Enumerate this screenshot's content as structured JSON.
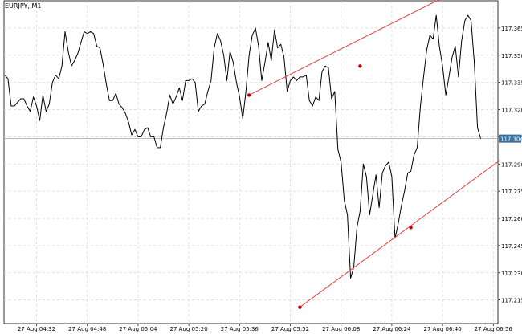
{
  "header": {
    "symbol_label": "EURJPY, M1"
  },
  "price_line": {
    "label": "117.304",
    "value": 117.304,
    "color": "#3c6e9a"
  },
  "chart_data": {
    "type": "line",
    "title": "",
    "xlabel": "",
    "ylabel": "",
    "ylim": [
      117.202,
      117.38
    ],
    "grid": true,
    "y_ticks": [
      {
        "v": 117.365,
        "label": "117.365"
      },
      {
        "v": 117.35,
        "label": "117.350"
      },
      {
        "v": 117.335,
        "label": "117.335"
      },
      {
        "v": 117.32,
        "label": "117.320"
      },
      {
        "v": 117.305,
        "label": "117.305"
      },
      {
        "v": 117.29,
        "label": "117.290"
      },
      {
        "v": 117.275,
        "label": "117.275"
      },
      {
        "v": 117.26,
        "label": "117.260"
      },
      {
        "v": 117.245,
        "label": "117.245"
      },
      {
        "v": 117.23,
        "label": "117.230"
      },
      {
        "v": 117.215,
        "label": "117.215"
      }
    ],
    "x_ticks": [
      {
        "t": 10,
        "label": "27 Aug 04:32"
      },
      {
        "t": 26,
        "label": "27 Aug 04:48"
      },
      {
        "t": 42,
        "label": "27 Aug 05:04"
      },
      {
        "t": 58,
        "label": "27 Aug 05:20"
      },
      {
        "t": 74,
        "label": "27 Aug 05:36"
      },
      {
        "t": 90,
        "label": "27 Aug 05:52"
      },
      {
        "t": 106,
        "label": "27 Aug 06:08"
      },
      {
        "t": 122,
        "label": "27 Aug 06:24"
      },
      {
        "t": 138,
        "label": "27 Aug 06:40"
      },
      {
        "t": 154,
        "label": "27 Aug 06:56"
      }
    ],
    "series": [
      {
        "color": "#000000",
        "points": [
          [
            0,
            117.339
          ],
          [
            1,
            117.337
          ],
          [
            2,
            117.322
          ],
          [
            3,
            117.322
          ],
          [
            4,
            117.324
          ],
          [
            5,
            117.326
          ],
          [
            6,
            117.326
          ],
          [
            7,
            117.322
          ],
          [
            8,
            117.319
          ],
          [
            9,
            117.327
          ],
          [
            10,
            117.322
          ],
          [
            11,
            117.314
          ],
          [
            12,
            117.328
          ],
          [
            13,
            117.319
          ],
          [
            14,
            117.323
          ],
          [
            15,
            117.335
          ],
          [
            16,
            117.339
          ],
          [
            17,
            117.337
          ],
          [
            18,
            117.344
          ],
          [
            19,
            117.363
          ],
          [
            20,
            117.352
          ],
          [
            21,
            117.344
          ],
          [
            22,
            117.347
          ],
          [
            23,
            117.351
          ],
          [
            24,
            117.357
          ],
          [
            25,
            117.363
          ],
          [
            26,
            117.362
          ],
          [
            27,
            117.363
          ],
          [
            28,
            117.362
          ],
          [
            29,
            117.355
          ],
          [
            30,
            117.354
          ],
          [
            31,
            117.345
          ],
          [
            32,
            117.334
          ],
          [
            33,
            117.325
          ],
          [
            34,
            117.325
          ],
          [
            35,
            117.329
          ],
          [
            36,
            117.323
          ],
          [
            37,
            117.321
          ],
          [
            38,
            117.318
          ],
          [
            39,
            117.313
          ],
          [
            40,
            117.306
          ],
          [
            41,
            117.309
          ],
          [
            42,
            117.305
          ],
          [
            43,
            117.305
          ],
          [
            44,
            117.309
          ],
          [
            45,
            117.31
          ],
          [
            46,
            117.305
          ],
          [
            47,
            117.305
          ],
          [
            48,
            117.299
          ],
          [
            49,
            117.299
          ],
          [
            50,
            117.31
          ],
          [
            51,
            117.318
          ],
          [
            52,
            117.328
          ],
          [
            53,
            117.323
          ],
          [
            54,
            117.327
          ],
          [
            55,
            117.332
          ],
          [
            56,
            117.325
          ],
          [
            57,
            117.336
          ],
          [
            58,
            117.336
          ],
          [
            59,
            117.337
          ],
          [
            60,
            117.335
          ],
          [
            61,
            117.319
          ],
          [
            62,
            117.322
          ],
          [
            63,
            117.323
          ],
          [
            64,
            117.33
          ],
          [
            65,
            117.336
          ],
          [
            66,
            117.354
          ],
          [
            67,
            117.362
          ],
          [
            68,
            117.358
          ],
          [
            69,
            117.35
          ],
          [
            70,
            117.336
          ],
          [
            71,
            117.352
          ],
          [
            72,
            117.346
          ],
          [
            73,
            117.335
          ],
          [
            74,
            117.327
          ],
          [
            75,
            117.315
          ],
          [
            76,
            117.33
          ],
          [
            77,
            117.35
          ],
          [
            78,
            117.361
          ],
          [
            79,
            117.365
          ],
          [
            80,
            117.355
          ],
          [
            81,
            117.336
          ],
          [
            82,
            117.346
          ],
          [
            83,
            117.357
          ],
          [
            84,
            117.347
          ],
          [
            85,
            117.364
          ],
          [
            86,
            117.354
          ],
          [
            87,
            117.356
          ],
          [
            88,
            117.349
          ],
          [
            89,
            117.33
          ],
          [
            90,
            117.336
          ],
          [
            91,
            117.338
          ],
          [
            92,
            117.336
          ],
          [
            93,
            117.338
          ],
          [
            94,
            117.338
          ],
          [
            95,
            117.339
          ],
          [
            96,
            117.325
          ],
          [
            97,
            117.322
          ],
          [
            98,
            117.327
          ],
          [
            99,
            117.325
          ],
          [
            100,
            117.341
          ],
          [
            101,
            117.344
          ],
          [
            102,
            117.343
          ],
          [
            103,
            117.326
          ],
          [
            104,
            117.33
          ],
          [
            105,
            117.298
          ],
          [
            106,
            117.291
          ],
          [
            107,
            117.27
          ],
          [
            108,
            117.262
          ],
          [
            109,
            117.227
          ],
          [
            110,
            117.233
          ],
          [
            111,
            117.255
          ],
          [
            112,
            117.264
          ],
          [
            113,
            117.29
          ],
          [
            114,
            117.283
          ],
          [
            115,
            117.262
          ],
          [
            116,
            117.273
          ],
          [
            117,
            117.284
          ],
          [
            118,
            117.266
          ],
          [
            119,
            117.285
          ],
          [
            120,
            117.289
          ],
          [
            121,
            117.291
          ],
          [
            122,
            117.283
          ],
          [
            123,
            117.249
          ],
          [
            124,
            117.257
          ],
          [
            125,
            117.267
          ],
          [
            126,
            117.275
          ],
          [
            127,
            117.285
          ],
          [
            128,
            117.286
          ],
          [
            129,
            117.295
          ],
          [
            130,
            117.299
          ],
          [
            131,
            117.322
          ],
          [
            132,
            117.338
          ],
          [
            133,
            117.353
          ],
          [
            134,
            117.361
          ],
          [
            135,
            117.359
          ],
          [
            136,
            117.372
          ],
          [
            137,
            117.355
          ],
          [
            138,
            117.344
          ],
          [
            139,
            117.328
          ],
          [
            140,
            117.338
          ],
          [
            141,
            117.349
          ],
          [
            142,
            117.355
          ],
          [
            143,
            117.338
          ],
          [
            144,
            117.358
          ],
          [
            145,
            117.369
          ],
          [
            146,
            117.372
          ],
          [
            147,
            117.369
          ],
          [
            148,
            117.346
          ],
          [
            149,
            117.31
          ],
          [
            150,
            117.304
          ]
        ]
      }
    ],
    "trendlines": [
      {
        "color": "#e04040",
        "points": [
          [
            77,
            117.328
          ],
          [
            112,
            117.344
          ],
          [
            143,
            117.386
          ]
        ]
      },
      {
        "color": "#e04040",
        "points": [
          [
            93,
            117.211
          ],
          [
            128,
            117.255
          ],
          [
            156,
            117.292
          ]
        ]
      }
    ]
  }
}
